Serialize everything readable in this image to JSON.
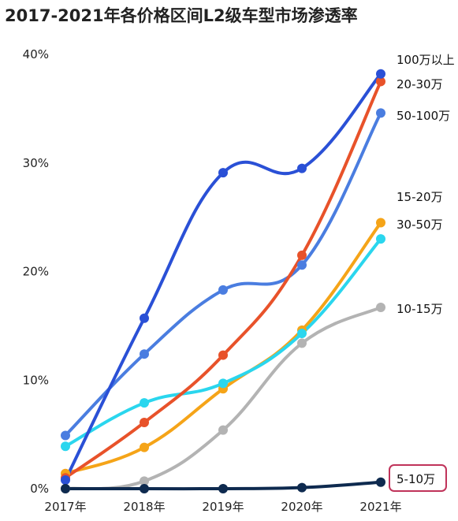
{
  "chart_data": {
    "type": "line",
    "title": "2017-2021年各价格区间L2级车型市场渗透率",
    "x": [
      "2017年",
      "2018年",
      "2019年",
      "2020年",
      "2021年"
    ],
    "y_ticks": [
      "0%",
      "10%",
      "20%",
      "30%",
      "40%"
    ],
    "ylim": [
      0,
      40
    ],
    "unit": "%",
    "grid": false,
    "legend": "labels at line ends (right)",
    "series": [
      {
        "name": "100万以上",
        "color": "#2a50d6",
        "values": [
          0.8,
          15.7,
          29.1,
          29.5,
          38.2
        ]
      },
      {
        "name": "20-30万",
        "color": "#e8522a",
        "values": [
          1.0,
          6.1,
          12.3,
          21.5,
          37.5
        ]
      },
      {
        "name": "50-100万",
        "color": "#4a7de0",
        "values": [
          4.9,
          12.4,
          18.3,
          20.6,
          34.6
        ]
      },
      {
        "name": "15-20万",
        "color": "#2ad6ee",
        "values": [
          3.9,
          7.9,
          9.7,
          14.3,
          23.0
        ]
      },
      {
        "name": "30-50万",
        "color": "#f5a418",
        "values": [
          1.4,
          3.8,
          9.2,
          14.6,
          24.5
        ]
      },
      {
        "name": "10-15万",
        "color": "#b3b3b3",
        "values": [
          0.0,
          0.7,
          5.4,
          13.4,
          16.7
        ]
      },
      {
        "name": "5-10万",
        "color": "#0e2a4f",
        "values": [
          0.0,
          0.0,
          0.0,
          0.1,
          0.6
        ]
      }
    ],
    "highlight": {
      "series": "5-10万",
      "border_color": "#c0335a"
    }
  }
}
